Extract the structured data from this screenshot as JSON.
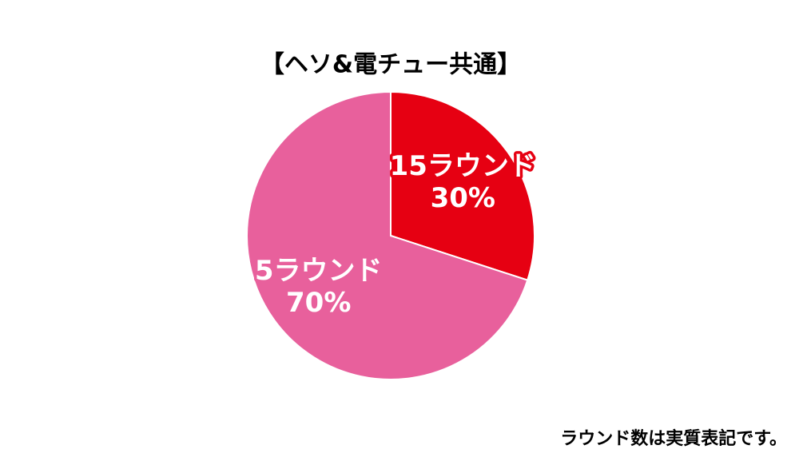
{
  "chart_data": {
    "type": "pie",
    "title": "【ヘソ&電チュー共通】",
    "categories": [
      "15ラウンド",
      "5ラウンド"
    ],
    "values": [
      30,
      70
    ],
    "value_labels": [
      "30%",
      "70%"
    ],
    "colors": [
      "#e60012",
      "#e8609c"
    ],
    "footnote": "ラウンド数は実質表記です。"
  }
}
